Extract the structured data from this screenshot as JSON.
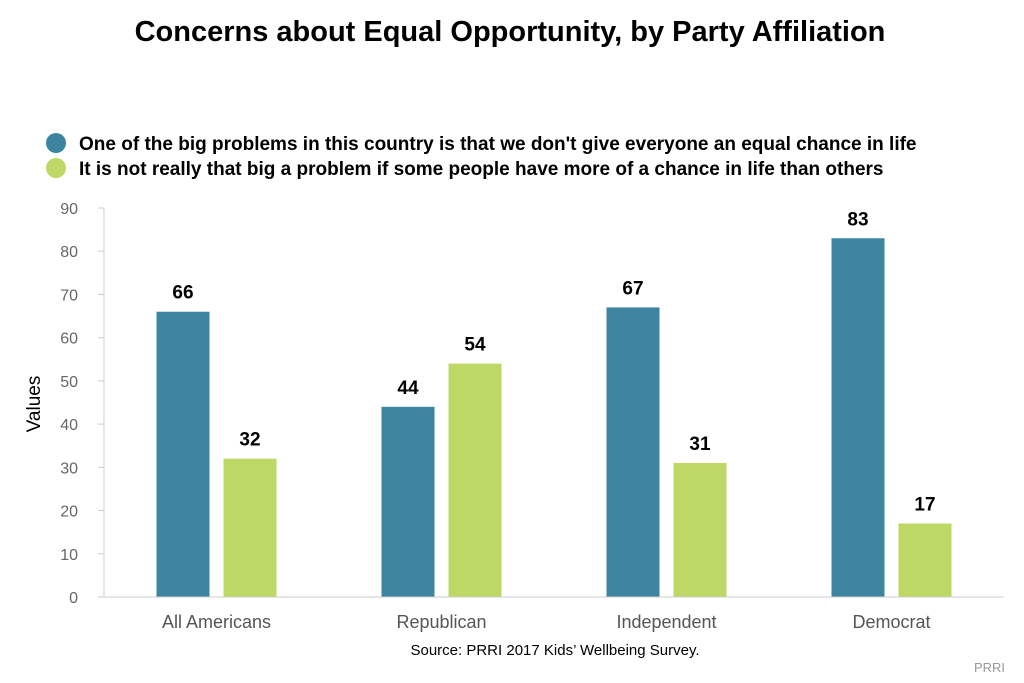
{
  "colors": {
    "series1": "#3d84a1",
    "series2": "#bdd864",
    "axis": "#cccccc"
  },
  "source": "Source: PRRI 2017 Kids’ Wellbeing Survey.",
  "credit": "PRRI",
  "chart_data": {
    "type": "bar",
    "title": "Concerns about Equal Opportunity, by Party Affiliation",
    "xlabel": "",
    "ylabel": "Values",
    "ylim": [
      0,
      90
    ],
    "yticks": [
      0,
      10,
      20,
      30,
      40,
      50,
      60,
      70,
      80,
      90
    ],
    "categories": [
      "All Americans",
      "Republican",
      "Independent",
      "Democrat"
    ],
    "series": [
      {
        "name": "One of the big problems in this country is that we don't give everyone an equal chance in life",
        "values": [
          66,
          44,
          67,
          83
        ]
      },
      {
        "name": "It is not really that big a problem if some people have more of a chance in life than others",
        "values": [
          32,
          54,
          31,
          17
        ]
      }
    ],
    "legend": "top-left",
    "grid": false
  }
}
